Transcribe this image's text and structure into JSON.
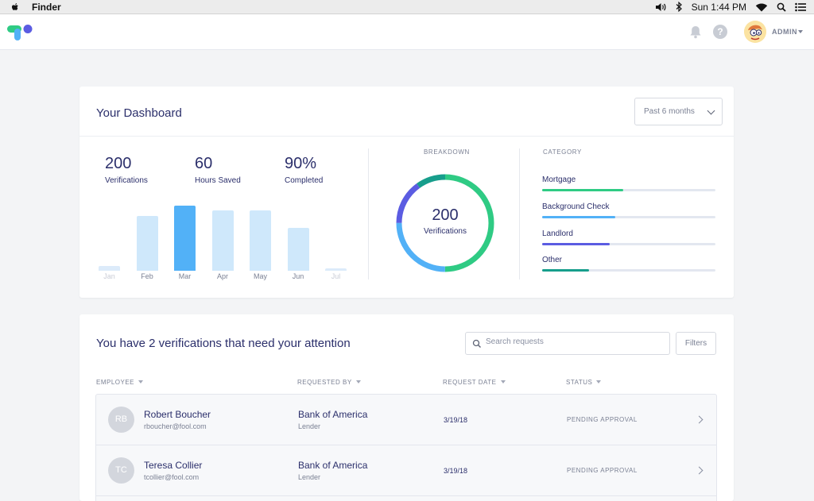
{
  "menubar": {
    "app_name": "Finder",
    "clock": "Sun 1:44 PM",
    "icons": [
      "apple-icon",
      "volume-icon",
      "bluetooth-icon",
      "wifi-icon",
      "spotlight-icon",
      "list-icon"
    ]
  },
  "appbar": {
    "admin_label": "ADMIN",
    "help_glyph": "?",
    "icons": [
      "logo-icon",
      "bell-icon",
      "help-icon",
      "caret-down-icon"
    ]
  },
  "dashboard": {
    "title": "Your Dashboard",
    "period": "Past 6 months",
    "stats": [
      {
        "value": "200",
        "label": "Verifications"
      },
      {
        "value": "60",
        "label": "Hours Saved"
      },
      {
        "value": "90%",
        "label": "Completed"
      }
    ],
    "breakdown_title": "BREAKDOWN",
    "breakdown_value": "200",
    "breakdown_label": "Verifications",
    "category_title": "CATEGORY",
    "categories": [
      {
        "name": "Mortgage",
        "share": 0.47,
        "color": "#2fcb84"
      },
      {
        "name": "Background Check",
        "share": 0.42,
        "color": "#52b1f7"
      },
      {
        "name": "Landlord",
        "share": 0.39,
        "color": "#5b5ce2"
      },
      {
        "name": "Other",
        "share": 0.27,
        "color": "#179e8c"
      }
    ]
  },
  "chart_data": {
    "type": "bar",
    "categories": [
      "Jan",
      "Feb",
      "Mar",
      "Apr",
      "May",
      "Jun",
      "Jul"
    ],
    "values": [
      6,
      66,
      78,
      72,
      72,
      51,
      3
    ],
    "highlighted": "Mar",
    "dimmed": [
      "Jan",
      "Jul"
    ],
    "bar_color": "#cfe8fb",
    "highlight_color": "#52b1f7",
    "ylim": [
      0,
      80
    ]
  },
  "donut": {
    "segments": [
      {
        "share": 0.5,
        "color": "#2fcb84"
      },
      {
        "share": 0.25,
        "color": "#52b1f7"
      },
      {
        "share": 0.15,
        "color": "#5b5ce2"
      },
      {
        "share": 0.1,
        "color": "#179e8c"
      }
    ]
  },
  "attention": {
    "title": "You have 2 verifications that need your attention",
    "search_placeholder": "Search requests",
    "filters_label": "Filters",
    "columns": [
      "EMPLOYEE",
      "REQUESTED BY",
      "REQUEST DATE",
      "STATUS"
    ],
    "rows": [
      {
        "initials": "RB",
        "name": "Robert Boucher",
        "email": "rboucher@fool.com",
        "bank": "Bank of America",
        "role": "Lender",
        "date": "3/19/18",
        "status": "PENDING APPROVAL"
      },
      {
        "initials": "TC",
        "name": "Teresa Collier",
        "email": "tcollier@fool.com",
        "bank": "Bank of America",
        "role": "Lender",
        "date": "3/19/18",
        "status": "PENDING APPROVAL"
      }
    ]
  }
}
